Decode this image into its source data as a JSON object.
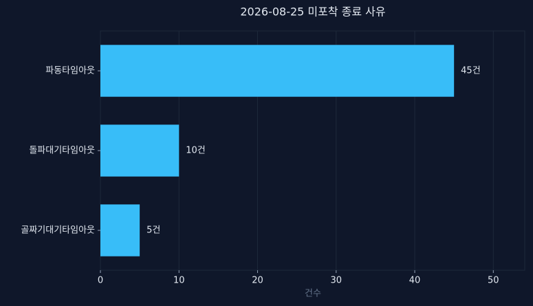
{
  "chart_data": {
    "type": "hbar",
    "title": "2026-08-25 미포착 종료 사유",
    "categories": [
      "파동타임아웃",
      "돌파대기타임아웃",
      "골짜기대기타임아웃"
    ],
    "values": [
      45,
      10,
      5
    ],
    "value_labels": [
      "45건",
      "10건",
      "5건"
    ],
    "color": "#38bdf8",
    "xlabel": "건수",
    "xlim": [
      0,
      54
    ],
    "xticks": [
      0,
      10,
      20,
      30,
      40,
      50
    ],
    "grid": true
  }
}
